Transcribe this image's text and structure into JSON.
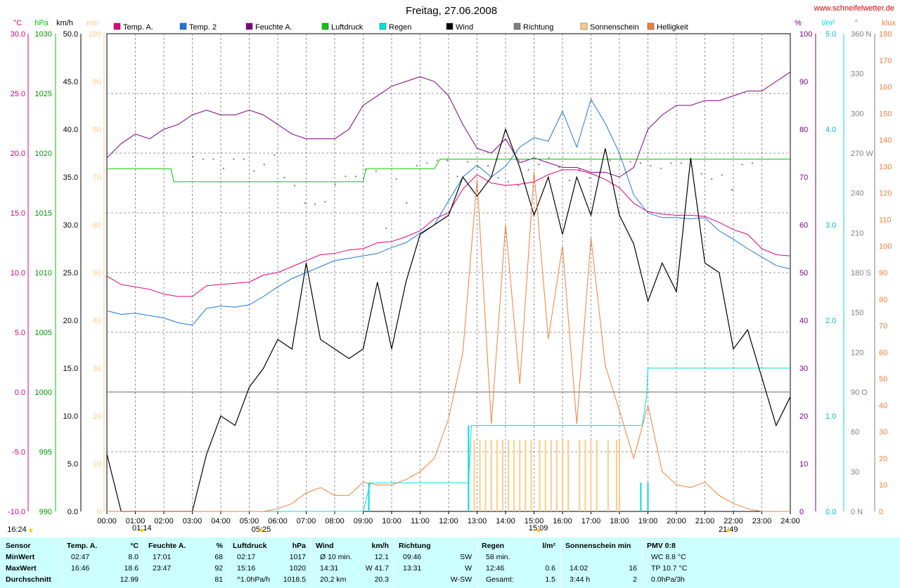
{
  "header": {
    "title": "Freitag, 27.06.2008",
    "site": "www.schneifelwetter.de"
  },
  "legend": [
    {
      "label": "Temp. A.",
      "color": "#e0007f"
    },
    {
      "label": "Temp. 2",
      "color": "#1e78d2"
    },
    {
      "label": "Feuchte A.",
      "color": "#800080"
    },
    {
      "label": "Luftdruck",
      "color": "#00cc00"
    },
    {
      "label": "Regen",
      "color": "#00e0e0"
    },
    {
      "label": "Wind",
      "color": "#000000"
    },
    {
      "label": "Richtung",
      "color": "#808080"
    },
    {
      "label": "Sonnenschein",
      "color": "#ffcc88"
    },
    {
      "label": "Helligkeit",
      "color": "#f07f3c"
    }
  ],
  "axes": {
    "left_units": [
      "°C",
      "hPa",
      "km/h",
      "min"
    ],
    "right_units": [
      "%",
      "l/m²",
      "°",
      "klux"
    ],
    "temp_ticks": [
      "30.0",
      "25.0",
      "20.0",
      "15.0",
      "10.0",
      "5.0",
      "0.0",
      "-5.0",
      "-10.0"
    ],
    "pressure_ticks": [
      "1030",
      "1025",
      "1020",
      "1015",
      "1010",
      "1005",
      "1000",
      "995",
      "990"
    ],
    "wind_ticks": [
      "50.0",
      "45.0",
      "40.0",
      "35.0",
      "30.0",
      "25.0",
      "20.0",
      "15.0",
      "10.0",
      "5.0",
      "0.0"
    ],
    "sun_ticks": [
      "100",
      "90",
      "80",
      "70",
      "60",
      "50",
      "40",
      "30",
      "20",
      "10",
      "0"
    ],
    "humidity_ticks": [
      "100",
      "90",
      "80",
      "70",
      "60",
      "50",
      "40",
      "30",
      "20",
      "10",
      "0"
    ],
    "rain_ticks": [
      "5.0",
      "4.0",
      "3.0",
      "2.0",
      "1.0",
      "0.0"
    ],
    "direction_ticks": [
      {
        "label": "360 N",
        "v": 360
      },
      {
        "label": "330",
        "v": 330
      },
      {
        "label": "300",
        "v": 300
      },
      {
        "label": "270 W",
        "v": 270
      },
      {
        "label": "240",
        "v": 240
      },
      {
        "label": "210",
        "v": 210
      },
      {
        "label": "180 S",
        "v": 180
      },
      {
        "label": "150",
        "v": 150
      },
      {
        "label": "120",
        "v": 120
      },
      {
        "label": "90 O",
        "v": 90
      },
      {
        "label": "60",
        "v": 60
      },
      {
        "label": "30",
        "v": 30
      },
      {
        "label": "0 N",
        "v": 0
      }
    ],
    "klux_ticks": [
      "180",
      "170",
      "160",
      "150",
      "140",
      "130",
      "120",
      "110",
      "100",
      "90",
      "80",
      "70",
      "60",
      "50",
      "40",
      "30",
      "20",
      "10",
      "0"
    ],
    "time_ticks": [
      "00:00",
      "01:00",
      "02:00",
      "03:00",
      "04:00",
      "05:00",
      "06:00",
      "07:00",
      "08:00",
      "09:00",
      "10:00",
      "11:00",
      "12:00",
      "13:00",
      "14:00",
      "15:00",
      "16:00",
      "17:00",
      "18:00",
      "19:00",
      "20:00",
      "21:00",
      "22:00",
      "23:00",
      "24:00"
    ],
    "time_markers": [
      {
        "label": "16:24",
        "t": -3.5,
        "row": 2
      },
      {
        "label": "01:14",
        "t": 1.23,
        "row": 1
      },
      {
        "label": "05:25",
        "t": 5.42,
        "row": 2
      },
      {
        "label": "15:09",
        "t": 15.15,
        "row": 1
      },
      {
        "label": "21:49",
        "t": 21.82,
        "row": 2
      }
    ]
  },
  "chart_data": {
    "type": "line",
    "title": "Freitag, 27.06.2008",
    "x_unit": "hours",
    "xlim": [
      0,
      24
    ],
    "series": [
      {
        "name": "Temp. A.",
        "color": "#e0007f",
        "unit": "°C",
        "range": [
          -10,
          30
        ],
        "x": [
          0,
          0.5,
          1,
          1.5,
          2,
          2.5,
          3,
          3.5,
          4,
          4.5,
          5,
          5.5,
          6,
          6.5,
          7,
          7.5,
          8,
          8.5,
          9,
          9.5,
          10,
          10.5,
          11,
          11.5,
          12,
          12.5,
          13,
          13.5,
          14,
          14.5,
          15,
          15.5,
          16,
          16.5,
          17,
          17.5,
          18,
          18.5,
          19,
          19.5,
          20,
          20.5,
          21,
          21.5,
          22,
          22.5,
          23,
          23.5,
          24
        ],
        "y": [
          9.7,
          9.0,
          8.8,
          8.6,
          8.2,
          8.0,
          8.0,
          8.9,
          9.0,
          9.1,
          9.2,
          9.8,
          10.0,
          10.5,
          11.0,
          11.5,
          11.6,
          11.9,
          12.0,
          12.5,
          12.6,
          13.0,
          13.5,
          14.5,
          15.0,
          17.0,
          18.2,
          17.5,
          17.3,
          17.4,
          17.6,
          18.2,
          18.6,
          18.6,
          18.3,
          17.8,
          17.1,
          15.8,
          15.1,
          14.9,
          14.8,
          14.8,
          14.7,
          14.2,
          13.6,
          13.2,
          12.0,
          11.5,
          11.4
        ]
      },
      {
        "name": "Temp. 2",
        "color": "#1e78d2",
        "unit": "°C",
        "range": [
          -10,
          30
        ],
        "x": [
          0,
          0.5,
          1,
          1.5,
          2,
          2.5,
          3,
          3.5,
          4,
          4.5,
          5,
          5.5,
          6,
          6.5,
          7,
          7.5,
          8,
          8.5,
          9,
          9.5,
          10,
          10.5,
          11,
          11.5,
          12,
          12.5,
          13,
          13.5,
          14,
          14.5,
          15,
          15.5,
          16,
          16.5,
          17,
          17.5,
          18,
          18.5,
          19,
          19.5,
          20,
          20.5,
          21,
          21.5,
          22,
          22.5,
          23,
          23.5,
          24
        ],
        "y": [
          6.8,
          6.5,
          6.6,
          6.4,
          6.2,
          5.8,
          5.6,
          7.0,
          7.2,
          7.1,
          7.3,
          8.0,
          8.8,
          9.5,
          10.0,
          10.5,
          11.0,
          11.2,
          11.4,
          11.6,
          12.1,
          12.5,
          13.3,
          14.0,
          16.0,
          18.0,
          19.0,
          18.0,
          18.9,
          20.5,
          21.3,
          21.0,
          23.5,
          20.5,
          24.5,
          22.5,
          20.0,
          16.5,
          15.0,
          14.6,
          14.6,
          14.5,
          14.6,
          13.5,
          12.8,
          12.0,
          11.3,
          10.6,
          10.3
        ]
      },
      {
        "name": "Feuchte A.",
        "color": "#800080",
        "unit": "%",
        "range": [
          0,
          100
        ],
        "x": [
          0,
          0.5,
          1,
          1.5,
          2,
          2.5,
          3,
          3.5,
          4,
          4.5,
          5,
          5.5,
          6,
          6.5,
          7,
          7.5,
          8,
          8.5,
          9,
          9.5,
          10,
          10.5,
          11,
          11.5,
          12,
          12.5,
          13,
          13.5,
          14,
          14.5,
          15,
          15.5,
          16,
          16.5,
          17,
          17.5,
          18,
          18.5,
          19,
          19.5,
          20,
          20.5,
          21,
          21.5,
          22,
          22.5,
          23,
          23.5,
          24
        ],
        "y": [
          74,
          77,
          79,
          78,
          80,
          81,
          83,
          84,
          83,
          83,
          84,
          83,
          81,
          79,
          78,
          78,
          78,
          80,
          85,
          87,
          89,
          90,
          91,
          90,
          87,
          81,
          76,
          75,
          78,
          73,
          74,
          73,
          72,
          72,
          71,
          71,
          70,
          72,
          80,
          83,
          85,
          85,
          86,
          86,
          87,
          88,
          88,
          90,
          92
        ]
      },
      {
        "name": "Luftdruck",
        "color": "#00cc00",
        "unit": "hPa",
        "range": [
          990,
          1030
        ],
        "x": [
          0,
          1.8,
          2.25,
          2.35,
          9.0,
          9.1,
          11.5,
          11.7,
          24
        ],
        "y": [
          1018.7,
          1018.7,
          1018.7,
          1017.6,
          1017.6,
          1018.7,
          1018.7,
          1019.5,
          1019.5
        ]
      },
      {
        "name": "Regen",
        "color": "#00e0e0",
        "unit": "l/m²",
        "range": [
          0,
          5
        ],
        "x": [
          0,
          9.0,
          9.25,
          12.7,
          12.8,
          18.8,
          18.95,
          19.0,
          24
        ],
        "y": [
          0,
          0,
          0.3,
          0.3,
          0.9,
          0.9,
          1.2,
          1.5,
          1.5
        ]
      },
      {
        "name": "Wind",
        "color": "#000000",
        "unit": "km/h",
        "range": [
          0,
          50
        ],
        "x": [
          0,
          0.5,
          1,
          1.5,
          2,
          2.5,
          3,
          3.5,
          4,
          4.5,
          5,
          5.5,
          6,
          6.5,
          7,
          7.5,
          8,
          8.5,
          9,
          9.5,
          10,
          10.5,
          11,
          11.5,
          12,
          12.5,
          13,
          13.5,
          14,
          14.5,
          15,
          15.5,
          16,
          16.5,
          17,
          17.5,
          18,
          18.5,
          19,
          19.5,
          20,
          20.5,
          21,
          21.5,
          22,
          22.5,
          23,
          23.5,
          24
        ],
        "y": [
          6,
          0,
          0,
          0,
          0,
          0,
          0,
          6,
          10,
          9,
          13,
          15,
          18,
          17,
          26,
          18,
          17,
          16,
          17,
          24,
          17,
          24,
          29,
          30,
          31,
          35,
          33,
          35,
          40,
          36,
          31,
          35,
          29,
          35,
          31,
          38,
          31,
          28,
          22,
          26,
          23,
          37,
          26,
          25,
          17,
          19,
          14,
          9,
          12
        ]
      },
      {
        "name": "Helligkeit",
        "color": "#f07f3c",
        "unit": "klux",
        "range": [
          0,
          180
        ],
        "x": [
          0,
          0.5,
          1,
          1.5,
          2,
          2.5,
          3,
          3.5,
          4,
          4.5,
          5,
          5.5,
          6,
          6.5,
          7,
          7.5,
          8,
          8.5,
          9,
          9.5,
          10,
          10.5,
          11,
          11.5,
          12,
          12.5,
          13,
          13.5,
          14,
          14.5,
          15,
          15.5,
          16,
          16.5,
          17,
          17.5,
          18,
          18.5,
          19,
          19.5,
          20,
          20.5,
          21,
          21.5,
          22,
          22.5,
          23,
          23.5,
          24
        ],
        "y": [
          0,
          0,
          0,
          0,
          0,
          0,
          0,
          0,
          0,
          0,
          0,
          0,
          1,
          3,
          7,
          9,
          6,
          6,
          11,
          10,
          10,
          12,
          15,
          20,
          35,
          60,
          125,
          33,
          108,
          48,
          128,
          65,
          100,
          33,
          103,
          55,
          38,
          20,
          40,
          15,
          10,
          9,
          11,
          6,
          3,
          1,
          0,
          0,
          0
        ]
      }
    ],
    "direction_dots_deg": [
      268,
      266,
      266,
      259,
      266,
      266,
      257,
      262,
      269,
      252,
      246,
      233,
      232,
      234,
      247,
      253,
      253,
      258,
      257,
      214,
      251,
      233,
      261,
      263,
      265,
      265,
      253,
      264,
      260,
      261,
      252,
      249,
      246,
      258,
      262,
      267,
      260,
      250,
      258,
      252,
      256,
      265,
      266,
      264,
      263,
      261,
      259,
      263,
      263,
      261,
      255,
      251,
      254,
      243,
      262,
      263
    ],
    "sunshine_bars_x": [
      12.7,
      12.9,
      13.1,
      13.3,
      13.5,
      13.7,
      13.9,
      14.1,
      14.3,
      14.5,
      14.7,
      14.9,
      15.2,
      15.4,
      15.6,
      15.8,
      16.0,
      16.2,
      16.6,
      16.8,
      17.0,
      17.2,
      17.6,
      17.9,
      18.0
    ]
  },
  "table": {
    "row_labels": [
      "Sensor",
      "MinWert",
      "MaxWert",
      "Durchschnitt"
    ],
    "columns": [
      {
        "name": "Temp. A.",
        "unit": "°C",
        "rows": [
          [
            "02:47",
            "8.0"
          ],
          [
            "16:46",
            "18.6"
          ],
          [
            "",
            "12.99"
          ]
        ]
      },
      {
        "name": "Feuchte A.",
        "unit": "%",
        "rows": [
          [
            "17:01",
            "68"
          ],
          [
            "23:47",
            "92"
          ],
          [
            "",
            "81"
          ]
        ]
      },
      {
        "name": "Luftdruck",
        "unit": "hPa",
        "rows": [
          [
            "02:17",
            "1017"
          ],
          [
            "15:16",
            "1020"
          ],
          [
            "^1.0hPa/h",
            "1018.5"
          ]
        ]
      },
      {
        "name": "Wind",
        "unit": "km/h",
        "rows": [
          [
            "Ø 10 min.",
            "12.1"
          ],
          [
            "14:31",
            "W 41.7"
          ],
          [
            "20,2 km",
            "20.3"
          ]
        ]
      },
      {
        "name": "Richtung",
        "unit": "",
        "rows": [
          [
            "09:46",
            "SW"
          ],
          [
            "13:31",
            "W"
          ],
          [
            "",
            "W-SW"
          ]
        ]
      },
      {
        "name": "Regen",
        "unit": "l/m²",
        "rows": [
          [
            "58 min.",
            ""
          ],
          [
            "12:46",
            "0.6"
          ],
          [
            "Gesamt:",
            "1.5"
          ]
        ]
      },
      {
        "name": "Sonnenschein min",
        "unit": "",
        "rows": [
          [
            "",
            ""
          ],
          [
            "14:02",
            "16"
          ],
          [
            "3:44 h",
            "2"
          ]
        ]
      },
      {
        "name": "PMV 0:8",
        "unit": "",
        "rows": [
          [
            "WC 8.8 °C",
            ""
          ],
          [
            "TP 10.7 °C",
            ""
          ],
          [
            "0.0hPa/3h",
            ""
          ]
        ]
      }
    ]
  }
}
